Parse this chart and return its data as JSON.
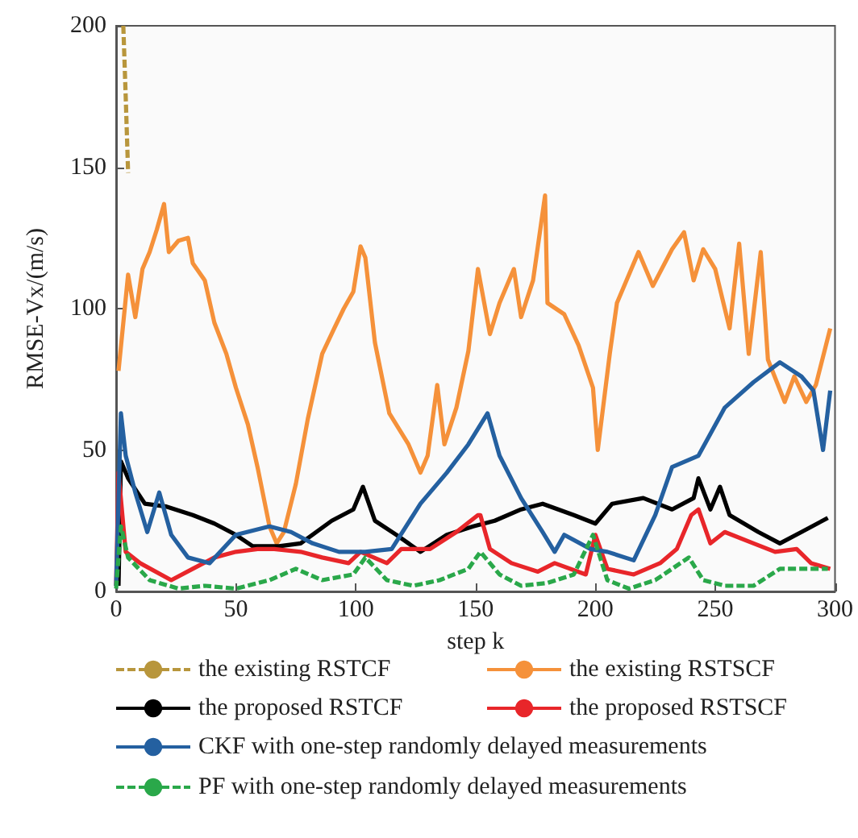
{
  "chart_data": {
    "type": "line",
    "xlabel": "step k",
    "ylabel": "RMSE-Vx/(m/s)",
    "xlim": [
      0,
      300
    ],
    "xticks": [
      0,
      50,
      100,
      150,
      200,
      250,
      300
    ],
    "ylim": [
      0,
      200
    ],
    "yticks": [
      0,
      50,
      100,
      150,
      200
    ],
    "grid": false,
    "legend": "bottom",
    "marker": "none",
    "series": [
      {
        "name": "the existing RSTCF",
        "color": "#b8963c",
        "line_style": "dashed",
        "x": [
          3,
          4,
          5
        ],
        "values": [
          200,
          175,
          148
        ]
      },
      {
        "name": "the existing RSTSCF",
        "color": "#f5913a",
        "line_style": "solid",
        "x": [
          1,
          5,
          8,
          11,
          14,
          17,
          20,
          22,
          26,
          30,
          32,
          37,
          41,
          46,
          50,
          55,
          59,
          64,
          67,
          70,
          75,
          80,
          86,
          91,
          95,
          99,
          102,
          104,
          108,
          114,
          122,
          127,
          130,
          134,
          137,
          142,
          147,
          151,
          156,
          160,
          166,
          169,
          174,
          179,
          180,
          187,
          193,
          199,
          201,
          206,
          209,
          218,
          224,
          232,
          237,
          241,
          245,
          250,
          256,
          260,
          264,
          269,
          272,
          279,
          283,
          288,
          292,
          298
        ],
        "values": [
          78,
          112,
          97,
          114,
          120,
          128,
          137,
          120,
          124,
          125,
          116,
          110,
          95,
          84,
          72,
          59,
          44,
          23,
          17,
          21,
          38,
          61,
          84,
          93,
          100,
          106,
          122,
          118,
          88,
          63,
          52,
          42,
          48,
          73,
          52,
          65,
          85,
          114,
          91,
          102,
          114,
          97,
          110,
          140,
          102,
          98,
          87,
          72,
          50,
          84,
          102,
          120,
          108,
          121,
          127,
          110,
          121,
          114,
          93,
          123,
          84,
          120,
          82,
          67,
          76,
          67,
          73,
          93
        ]
      },
      {
        "name": "the proposed RSTCF",
        "color": "#000000",
        "line_style": "solid",
        "x": [
          1,
          2,
          5,
          12,
          21,
          32,
          41,
          50,
          57,
          68,
          77,
          90,
          99,
          103,
          108,
          117,
          127,
          138,
          149,
          158,
          169,
          178,
          191,
          200,
          207,
          220,
          232,
          241,
          243,
          248,
          252,
          256,
          268,
          277,
          286,
          297
        ],
        "values": [
          2,
          46,
          40,
          31,
          30,
          27,
          24,
          20,
          16,
          16,
          17,
          25,
          29,
          37,
          25,
          20,
          14,
          20,
          23,
          25,
          29,
          31,
          27,
          24,
          31,
          33,
          29,
          33,
          40,
          29,
          37,
          27,
          21,
          17,
          21,
          26
        ]
      },
      {
        "name": "the proposed RSTSCF",
        "color": "#e8262a",
        "line_style": "solid",
        "x": [
          0,
          1,
          4,
          10,
          23,
          32,
          41,
          50,
          59,
          66,
          77,
          86,
          97,
          102,
          113,
          119,
          131,
          142,
          151,
          152,
          156,
          165,
          176,
          183,
          196,
          200,
          205,
          216,
          227,
          234,
          240,
          243,
          248,
          254,
          266,
          275,
          284,
          290,
          298
        ],
        "values": [
          2,
          42,
          14,
          10,
          4,
          8,
          12,
          14,
          15,
          15,
          14,
          12,
          10,
          14,
          10,
          15,
          15,
          21,
          27,
          27,
          15,
          10,
          7,
          10,
          6,
          20,
          8,
          6,
          10,
          15,
          27,
          29,
          17,
          21,
          17,
          14,
          15,
          10,
          8
        ]
      },
      {
        "name": "CKF with one-step randomly delayed measurements",
        "color": "#2460a0",
        "line_style": "solid",
        "x": [
          0,
          2,
          4,
          8,
          13,
          18,
          23,
          30,
          39,
          50,
          64,
          73,
          82,
          93,
          104,
          115,
          127,
          138,
          147,
          155,
          160,
          169,
          178,
          183,
          187,
          198,
          205,
          216,
          225,
          232,
          243,
          254,
          266,
          277,
          286,
          291,
          295,
          298
        ],
        "values": [
          2,
          63,
          48,
          35,
          21,
          35,
          20,
          12,
          10,
          20,
          23,
          21,
          17,
          14,
          14,
          15,
          31,
          42,
          52,
          63,
          48,
          33,
          21,
          14,
          20,
          15,
          14,
          11,
          27,
          44,
          48,
          65,
          74,
          81,
          76,
          71,
          50,
          71
        ]
      },
      {
        "name": "PF with one-step randomly delayed measurements",
        "color": "#2aa84a",
        "line_style": "dashed",
        "x": [
          0,
          2,
          5,
          14,
          26,
          37,
          50,
          64,
          75,
          86,
          99,
          104,
          113,
          124,
          135,
          147,
          152,
          160,
          169,
          180,
          191,
          199,
          205,
          214,
          225,
          239,
          245,
          254,
          266,
          277,
          286,
          297
        ],
        "values": [
          1,
          23,
          12,
          4,
          1,
          2,
          1,
          4,
          8,
          4,
          6,
          12,
          4,
          2,
          4,
          8,
          14,
          6,
          2,
          3,
          6,
          20,
          4,
          1,
          4,
          12,
          4,
          2,
          2,
          8,
          8,
          8
        ]
      }
    ]
  }
}
